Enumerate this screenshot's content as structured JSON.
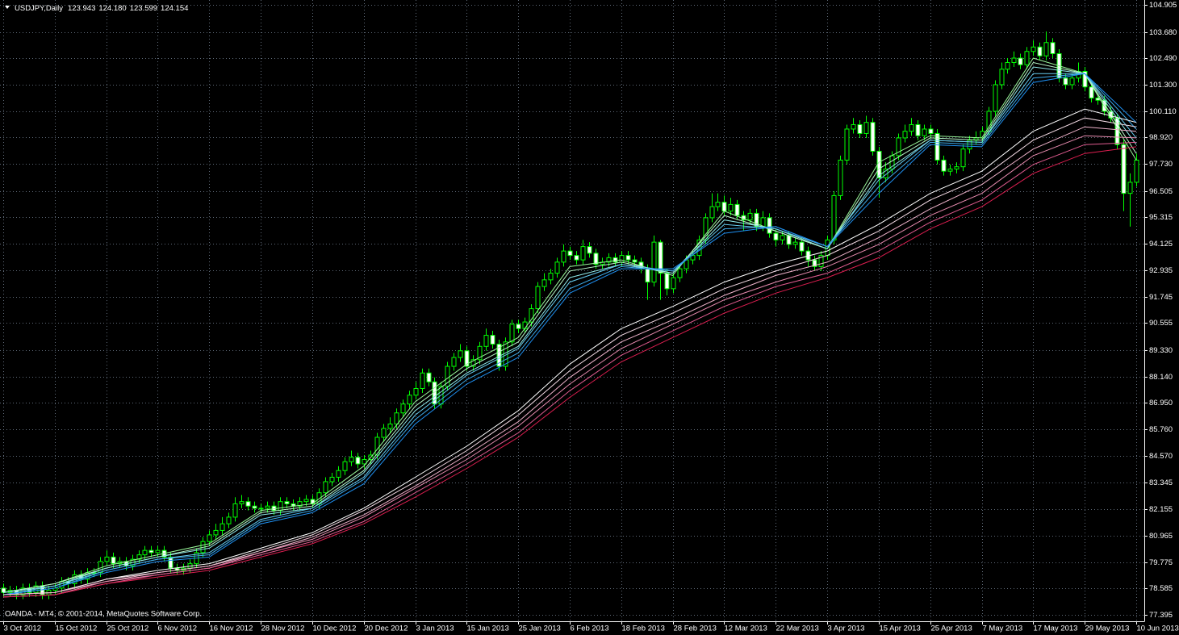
{
  "chart_data": {
    "type": "candlestick",
    "title": "USDJPY,Daily",
    "header_values": [
      "123.943",
      "124.180",
      "123.599",
      "124.154"
    ],
    "copyright": "OANDA - MT4, © 2001-2014, MetaQuotes Software Corp.",
    "up_color": "#000000",
    "down_color": "#ffffff",
    "wick_color": "#00ff00",
    "grid": true,
    "grid_color": "#5f6a78",
    "xlim": [
      -0.5,
      177.25
    ],
    "ylim": [
      77.14,
      105.12
    ],
    "xticks": [
      {
        "value": 0,
        "label": "3 Oct 2012"
      },
      {
        "value": 8,
        "label": "15 Oct 2012"
      },
      {
        "value": 16,
        "label": "25 Oct 2012"
      },
      {
        "value": 24,
        "label": "6 Nov 2012"
      },
      {
        "value": 32,
        "label": "16 Nov 2012"
      },
      {
        "value": 40,
        "label": "28 Nov 2012"
      },
      {
        "value": 48,
        "label": "10 Dec 2012"
      },
      {
        "value": 56,
        "label": "20 Dec 2012"
      },
      {
        "value": 64,
        "label": "3 Jan 2013"
      },
      {
        "value": 72,
        "label": "15 Jan 2013"
      },
      {
        "value": 80,
        "label": "25 Jan 2013"
      },
      {
        "value": 88,
        "label": "6 Feb 2013"
      },
      {
        "value": 96,
        "label": "18 Feb 2013"
      },
      {
        "value": 104,
        "label": "28 Feb 2013"
      },
      {
        "value": 112,
        "label": "12 Mar 2013"
      },
      {
        "value": 120,
        "label": "22 Mar 2013"
      },
      {
        "value": 128,
        "label": "3 Apr 2013"
      },
      {
        "value": 136,
        "label": "15 Apr 2013"
      },
      {
        "value": 144,
        "label": "25 Apr 2013"
      },
      {
        "value": 152,
        "label": "7 May 2013"
      },
      {
        "value": 160,
        "label": "17 May 2013"
      },
      {
        "value": 168,
        "label": "29 May 2013"
      },
      {
        "value": 176,
        "label": "10 Jun 2013"
      }
    ],
    "yticks": [
      77.395,
      78.585,
      79.775,
      80.965,
      82.155,
      83.345,
      {
        "value": 84.57,
        "label": "84.570"
      },
      {
        "value": 85.76,
        "label": "85.760"
      },
      {
        "value": 86.95,
        "label": "86.950"
      },
      {
        "value": 88.14,
        "label": "88.140"
      },
      {
        "value": 89.33,
        "label": "89.330"
      },
      90.555,
      91.745,
      92.935,
      94.125,
      95.315,
      96.505,
      {
        "value": 97.73,
        "label": "97.730"
      },
      {
        "value": 98.92,
        "label": "98.920"
      },
      {
        "value": 100.11,
        "label": "100.110"
      },
      {
        "value": 101.3,
        "label": "101.300"
      },
      {
        "value": 102.49,
        "label": "102.490"
      },
      {
        "value": 103.68,
        "label": "103.680"
      },
      104.905
    ],
    "open": [
      78.6,
      78.4,
      78.5,
      78.3,
      78.6,
      78.4,
      78.7,
      78.3,
      78.5,
      78.6,
      78.9,
      78.8,
      79.2,
      79.0,
      79.3,
      79.3,
      79.8,
      80.0,
      79.7,
      79.8,
      79.6,
      79.9,
      80.1,
      80.3,
      80.2,
      80.3,
      80.0,
      79.5,
      79.4,
      79.5,
      79.7,
      80.2,
      80.7,
      81.0,
      81.2,
      81.5,
      81.8,
      82.4,
      82.5,
      82.3,
      82.2,
      82.2,
      82.3,
      82.1,
      82.5,
      82.4,
      82.3,
      82.5,
      82.6,
      82.4,
      82.9,
      83.4,
      83.6,
      83.9,
      84.3,
      84.5,
      84.2,
      84.4,
      84.6,
      85.4,
      85.8,
      86.0,
      86.5,
      86.9,
      87.3,
      87.6,
      88.3,
      87.9,
      86.9,
      87.7,
      88.6,
      89.0,
      89.3,
      88.6,
      88.9,
      89.5,
      90.0,
      89.6,
      88.6,
      89.7,
      90.5,
      90.3,
      90.6,
      91.2,
      92.2,
      92.5,
      92.8,
      93.3,
      93.8,
      93.6,
      93.4,
      94.0,
      93.7,
      93.2,
      93.3,
      93.5,
      93.3,
      93.6,
      93.4,
      93.3,
      93.0,
      92.4,
      94.2,
      92.8,
      92.1,
      92.6,
      93.0,
      93.4,
      93.6,
      94.3,
      95.3,
      95.8,
      96.0,
      95.6,
      95.9,
      95.4,
      95.2,
      95.5,
      94.9,
      95.3,
      94.6,
      94.3,
      94.5,
      94.1,
      94.2,
      93.8,
      93.4,
      93.1,
      93.6,
      94.3,
      96.3,
      97.9,
      99.3,
      99.5,
      99.1,
      99.6,
      98.3,
      97.1,
      97.5,
      98.1,
      98.9,
      99.2,
      99.5,
      99.0,
      99.3,
      99.1,
      97.9,
      97.4,
      97.5,
      97.6,
      98.4,
      98.8,
      98.9,
      99.2,
      100.1,
      101.3,
      102.0,
      102.3,
      102.5,
      102.2,
      102.8,
      103.0,
      102.6,
      103.2,
      102.7,
      101.6,
      101.3,
      101.6,
      101.9,
      101.2,
      100.7,
      100.6,
      100.1,
      99.8,
      98.6,
      96.4,
      96.9
    ],
    "high": [
      78.8,
      78.7,
      78.7,
      78.8,
      78.8,
      78.9,
      78.9,
      78.7,
      78.8,
      79.1,
      79.1,
      79.4,
      79.4,
      79.5,
      79.5,
      80.0,
      80.3,
      80.2,
      80.0,
      80.0,
      80.1,
      80.3,
      80.5,
      80.5,
      80.5,
      80.5,
      80.2,
      79.7,
      79.7,
      79.9,
      80.4,
      80.9,
      81.2,
      81.5,
      81.8,
      82.0,
      82.7,
      82.8,
      82.7,
      82.5,
      82.4,
      82.5,
      82.5,
      82.7,
      82.7,
      82.6,
      82.7,
      82.8,
      82.8,
      83.1,
      83.6,
      83.8,
      84.1,
      84.5,
      84.8,
      84.7,
      84.6,
      84.8,
      85.6,
      86.0,
      86.3,
      86.7,
      87.1,
      87.5,
      87.9,
      88.5,
      88.5,
      88.1,
      87.9,
      88.8,
      89.2,
      89.6,
      89.5,
      89.1,
      89.7,
      90.3,
      90.2,
      89.8,
      89.9,
      90.7,
      90.7,
      90.8,
      91.4,
      92.4,
      92.8,
      93.0,
      93.5,
      94.1,
      94.0,
      93.8,
      94.3,
      94.2,
      93.9,
      93.5,
      93.7,
      93.7,
      93.8,
      93.8,
      93.6,
      93.5,
      93.2,
      94.5,
      94.3,
      93.0,
      92.8,
      93.2,
      93.6,
      93.8,
      94.5,
      95.5,
      96.4,
      96.4,
      96.3,
      96.2,
      96.1,
      95.6,
      95.7,
      95.7,
      95.6,
      95.5,
      94.8,
      94.7,
      94.7,
      94.4,
      94.4,
      94.0,
      93.6,
      93.8,
      94.5,
      96.5,
      98.1,
      99.5,
      99.8,
      99.7,
      99.9,
      99.8,
      98.5,
      97.8,
      98.3,
      99.1,
      99.5,
      99.8,
      99.7,
      99.5,
      99.5,
      99.3,
      98.1,
      97.7,
      97.8,
      98.6,
      99.0,
      99.2,
      99.4,
      100.3,
      101.5,
      102.3,
      102.5,
      102.8,
      102.7,
      103.0,
      103.3,
      103.2,
      103.7,
      103.4,
      102.9,
      101.8,
      101.8,
      102.3,
      102.1,
      101.4,
      100.9,
      100.8,
      100.3,
      100.0,
      98.8,
      97.3,
      98.2
    ],
    "low": [
      78.2,
      78.2,
      78.1,
      78.1,
      78.2,
      78.2,
      78.1,
      78.1,
      78.3,
      78.4,
      78.6,
      78.6,
      78.8,
      78.8,
      79.1,
      79.1,
      79.6,
      79.5,
      79.5,
      79.4,
      79.4,
      79.7,
      79.9,
      80.0,
      80.0,
      79.8,
      79.3,
      79.2,
      79.2,
      79.3,
      79.5,
      80.0,
      80.5,
      80.8,
      81.0,
      81.3,
      81.6,
      82.2,
      82.1,
      82.0,
      82.0,
      82.0,
      81.9,
      81.9,
      82.2,
      82.1,
      82.1,
      82.3,
      82.2,
      82.2,
      82.7,
      83.2,
      83.4,
      83.7,
      84.1,
      84.0,
      84.0,
      84.2,
      84.4,
      85.2,
      85.6,
      85.8,
      86.3,
      86.7,
      87.1,
      87.4,
      87.7,
      86.7,
      86.7,
      87.5,
      88.4,
      88.8,
      88.4,
      88.4,
      88.7,
      89.3,
      89.4,
      88.4,
      88.4,
      89.5,
      90.1,
      90.1,
      90.4,
      91.0,
      92.0,
      92.3,
      92.6,
      93.1,
      93.4,
      93.2,
      93.2,
      93.5,
      93.0,
      93.0,
      93.1,
      93.1,
      93.1,
      93.2,
      93.1,
      92.8,
      91.6,
      92.2,
      91.6,
      91.8,
      91.9,
      92.4,
      92.8,
      93.2,
      93.4,
      94.1,
      95.1,
      95.6,
      95.4,
      95.4,
      95.2,
      94.7,
      95.0,
      94.7,
      94.7,
      94.4,
      94.0,
      94.1,
      93.9,
      93.9,
      93.6,
      93.1,
      92.9,
      92.9,
      93.4,
      94.1,
      96.1,
      97.7,
      99.1,
      98.9,
      98.9,
      98.1,
      96.2,
      96.9,
      97.3,
      97.9,
      98.7,
      99.0,
      98.8,
      98.8,
      98.9,
      97.7,
      97.2,
      97.2,
      97.3,
      97.4,
      98.2,
      98.6,
      98.7,
      99.0,
      99.9,
      101.1,
      101.8,
      102.1,
      102.0,
      102.0,
      102.6,
      102.4,
      102.4,
      102.5,
      101.4,
      101.1,
      101.1,
      101.4,
      101.0,
      100.5,
      100.4,
      99.9,
      99.6,
      98.4,
      95.6,
      94.9,
      96.7
    ],
    "close": [
      78.4,
      78.5,
      78.3,
      78.6,
      78.4,
      78.7,
      78.3,
      78.5,
      78.6,
      78.9,
      78.8,
      79.2,
      79.0,
      79.3,
      79.3,
      79.8,
      80.0,
      79.7,
      79.8,
      79.6,
      79.9,
      80.1,
      80.3,
      80.2,
      80.3,
      80.0,
      79.5,
      79.4,
      79.5,
      79.7,
      80.2,
      80.7,
      81.0,
      81.2,
      81.5,
      81.8,
      82.4,
      82.5,
      82.3,
      82.2,
      82.2,
      82.3,
      82.1,
      82.5,
      82.4,
      82.3,
      82.5,
      82.6,
      82.4,
      82.9,
      83.4,
      83.6,
      83.9,
      84.3,
      84.5,
      84.2,
      84.4,
      84.6,
      85.4,
      85.8,
      86.0,
      86.5,
      86.9,
      87.3,
      87.6,
      88.3,
      87.9,
      86.9,
      87.7,
      88.6,
      89.0,
      89.3,
      88.6,
      88.9,
      89.5,
      90.0,
      89.6,
      88.6,
      89.7,
      90.5,
      90.3,
      90.6,
      91.2,
      92.2,
      92.5,
      92.8,
      93.3,
      93.8,
      93.6,
      93.4,
      94.0,
      93.7,
      93.2,
      93.3,
      93.5,
      93.3,
      93.6,
      93.4,
      93.3,
      93.0,
      92.4,
      94.2,
      92.8,
      92.1,
      92.6,
      93.0,
      93.4,
      93.6,
      94.3,
      95.3,
      95.8,
      96.0,
      95.6,
      95.9,
      95.4,
      95.2,
      95.5,
      94.9,
      95.3,
      94.6,
      94.3,
      94.5,
      94.1,
      94.2,
      93.8,
      93.4,
      93.1,
      93.6,
      94.3,
      96.3,
      97.9,
      99.3,
      99.5,
      99.1,
      99.6,
      98.3,
      97.1,
      97.5,
      98.1,
      98.9,
      99.2,
      99.5,
      99.0,
      99.3,
      99.1,
      97.9,
      97.4,
      97.5,
      97.6,
      98.4,
      98.8,
      98.9,
      99.2,
      100.1,
      101.3,
      102.0,
      102.3,
      102.5,
      102.2,
      102.8,
      103.0,
      102.6,
      103.2,
      102.7,
      101.6,
      101.3,
      101.6,
      101.9,
      101.2,
      100.7,
      100.6,
      100.1,
      99.8,
      98.6,
      96.4,
      96.9,
      97.9
    ],
    "ma_x": [
      0,
      8,
      16,
      24,
      32,
      40,
      48,
      56,
      64,
      72,
      80,
      88,
      96,
      104,
      112,
      120,
      128,
      136,
      144,
      152,
      160,
      168,
      176
    ],
    "series": [
      {
        "color": "#98f598",
        "values": [
          78.4,
          78.8,
          79.6,
          80.1,
          80.6,
          82.1,
          82.4,
          84.1,
          87.0,
          88.7,
          89.9,
          93.1,
          93.4,
          92.7,
          95.6,
          94.7,
          93.9,
          97.8,
          99.0,
          98.9,
          102.5,
          101.8,
          97.9
        ]
      },
      {
        "color": "#b8f5c8",
        "values": [
          78.4,
          78.8,
          79.5,
          80.0,
          80.5,
          82.0,
          82.3,
          83.9,
          86.8,
          88.5,
          89.7,
          92.9,
          93.3,
          92.8,
          95.4,
          94.7,
          93.9,
          97.5,
          98.9,
          98.8,
          102.3,
          101.8,
          98.2
        ]
      },
      {
        "color": "#8ee6e6",
        "values": [
          78.4,
          78.7,
          79.5,
          80.0,
          80.4,
          81.9,
          82.2,
          83.8,
          86.6,
          88.3,
          89.5,
          92.6,
          93.2,
          92.8,
          95.2,
          94.8,
          93.9,
          97.2,
          98.8,
          98.7,
          102.1,
          101.8,
          98.6
        ]
      },
      {
        "color": "#66ccf0",
        "values": [
          78.3,
          78.7,
          79.4,
          79.9,
          80.2,
          81.7,
          82.2,
          83.6,
          86.4,
          88.2,
          89.4,
          92.4,
          93.2,
          92.9,
          95.0,
          94.8,
          94.0,
          97.0,
          98.8,
          98.7,
          101.8,
          101.8,
          98.9
        ]
      },
      {
        "color": "#3eaae8",
        "values": [
          78.3,
          78.6,
          79.4,
          79.9,
          80.1,
          81.6,
          82.1,
          83.5,
          86.2,
          88.0,
          89.2,
          92.1,
          93.1,
          92.9,
          94.8,
          94.9,
          94.0,
          96.7,
          98.7,
          98.6,
          101.6,
          101.8,
          99.3
        ]
      },
      {
        "color": "#1e8ff0",
        "values": [
          78.3,
          78.6,
          79.3,
          79.8,
          80.0,
          81.5,
          82.0,
          83.3,
          86.0,
          87.8,
          89.0,
          91.9,
          93.0,
          93.0,
          94.6,
          94.9,
          94.0,
          96.4,
          98.6,
          98.5,
          101.4,
          101.8,
          99.6
        ]
      },
      {
        "color": "#ffffff",
        "values": [
          78.3,
          78.4,
          79.0,
          79.4,
          79.7,
          80.4,
          81.1,
          82.2,
          83.6,
          85.0,
          86.6,
          88.7,
          90.3,
          91.3,
          92.4,
          93.2,
          93.8,
          95.0,
          96.4,
          97.4,
          99.2,
          100.2,
          99.6
        ]
      },
      {
        "color": "#f5dce6",
        "values": [
          78.3,
          78.4,
          79.0,
          79.3,
          79.6,
          80.3,
          81.0,
          82.1,
          83.4,
          84.8,
          86.4,
          88.4,
          90.0,
          91.0,
          92.1,
          92.9,
          93.6,
          94.7,
          96.1,
          97.1,
          98.8,
          99.8,
          99.4
        ]
      },
      {
        "color": "#f0b4cc",
        "values": [
          78.3,
          78.4,
          78.9,
          79.3,
          79.6,
          80.2,
          80.9,
          81.9,
          83.2,
          84.6,
          86.1,
          88.1,
          89.7,
          90.7,
          91.8,
          92.7,
          93.3,
          94.4,
          95.7,
          96.8,
          98.4,
          99.4,
          99.2
        ]
      },
      {
        "color": "#e88cb0",
        "values": [
          78.2,
          78.3,
          78.9,
          79.2,
          79.5,
          80.2,
          80.8,
          81.8,
          83.1,
          84.4,
          85.9,
          87.8,
          89.4,
          90.5,
          91.6,
          92.4,
          93.1,
          94.1,
          95.4,
          96.4,
          98.1,
          99.0,
          98.9
        ]
      },
      {
        "color": "#e05c90",
        "values": [
          78.2,
          78.3,
          78.8,
          79.2,
          79.5,
          80.1,
          80.7,
          81.6,
          82.9,
          84.2,
          85.6,
          87.5,
          89.1,
          90.2,
          91.3,
          92.2,
          92.8,
          93.8,
          95.1,
          96.1,
          97.7,
          98.6,
          98.7
        ]
      },
      {
        "color": "#dc1e50",
        "values": [
          78.2,
          78.3,
          78.8,
          79.1,
          79.4,
          80.0,
          80.6,
          81.5,
          82.7,
          84.0,
          85.4,
          87.2,
          88.8,
          89.9,
          91.0,
          91.9,
          92.6,
          93.5,
          94.8,
          95.8,
          97.3,
          98.2,
          98.5
        ]
      }
    ]
  }
}
